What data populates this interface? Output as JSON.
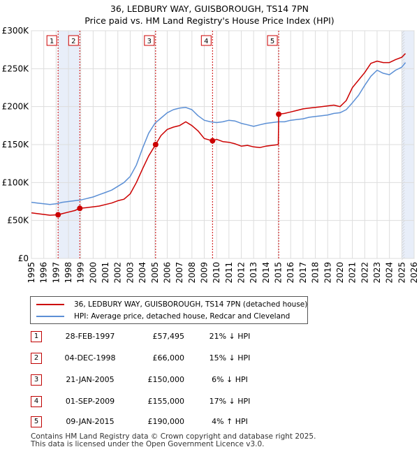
{
  "title_line1": "36, LEDBURY WAY, GUISBOROUGH, TS14 7PN",
  "title_line2": "Price paid vs. HM Land Registry's House Price Index (HPI)",
  "chart_data": {
    "type": "line",
    "title": "36, LEDBURY WAY, GUISBOROUGH, TS14 7PN — Price paid vs. HM Land Registry's House Price Index (HPI)",
    "xlim": [
      1995,
      2026
    ],
    "ylim": [
      0,
      300000
    ],
    "x_ticks": [
      1995,
      1996,
      1997,
      1998,
      1999,
      2000,
      2001,
      2002,
      2003,
      2004,
      2005,
      2006,
      2007,
      2008,
      2009,
      2010,
      2011,
      2012,
      2013,
      2014,
      2015,
      2016,
      2017,
      2018,
      2019,
      2020,
      2021,
      2022,
      2023,
      2024,
      2025,
      2026
    ],
    "y_ticks": [
      0,
      50000,
      100000,
      150000,
      200000,
      250000,
      300000
    ],
    "y_tick_labels": [
      "£0",
      "£50K",
      "£100K",
      "£150K",
      "£200K",
      "£250K",
      "£300K"
    ],
    "grid": true,
    "shaded_ranges": [
      [
        1997.16,
        1998.92
      ],
      [
        2025.0,
        2026.0
      ]
    ],
    "series": [
      {
        "name": "36, LEDBURY WAY, GUISBOROUGH, TS14 7PN (detached house)",
        "color": "#cc0000",
        "x": [
          1995.0,
          1995.5,
          1996.0,
          1996.5,
          1997.16,
          1997.5,
          1998.0,
          1998.5,
          1998.92,
          1999.5,
          2000.0,
          2000.5,
          2001.0,
          2001.5,
          2002.0,
          2002.5,
          2003.0,
          2003.5,
          2004.0,
          2004.5,
          2005.06,
          2005.5,
          2006.0,
          2006.5,
          2007.0,
          2007.5,
          2008.0,
          2008.5,
          2009.0,
          2009.67,
          2010.0,
          2010.5,
          2011.0,
          2011.5,
          2012.0,
          2012.5,
          2013.0,
          2013.5,
          2014.0,
          2014.5,
          2015.0,
          2015.03,
          2015.5,
          2016.0,
          2016.5,
          2017.0,
          2017.5,
          2018.0,
          2018.5,
          2019.0,
          2019.5,
          2020.0,
          2020.5,
          2021.0,
          2021.5,
          2022.0,
          2022.5,
          2023.0,
          2023.5,
          2024.0,
          2024.5,
          2025.0,
          2025.3
        ],
        "values": [
          60000,
          59000,
          58000,
          57000,
          57495,
          59000,
          61000,
          63000,
          66000,
          67000,
          68000,
          69000,
          71000,
          73000,
          76000,
          78000,
          85000,
          100000,
          118000,
          135000,
          150000,
          162000,
          170000,
          173000,
          175000,
          180000,
          175000,
          168000,
          158000,
          155000,
          157000,
          154000,
          153000,
          151000,
          148000,
          149000,
          147000,
          146000,
          148000,
          149000,
          150000,
          190000,
          191000,
          193000,
          195000,
          197000,
          198000,
          199000,
          200000,
          201000,
          202000,
          200000,
          208000,
          225000,
          235000,
          245000,
          257000,
          260000,
          258000,
          258000,
          262000,
          265000,
          270000
        ]
      },
      {
        "name": "HPI: Average price, detached house, Redcar and Cleveland",
        "color": "#5b8fd5",
        "x": [
          1995.0,
          1995.5,
          1996.0,
          1996.5,
          1997.0,
          1997.5,
          1998.0,
          1998.5,
          1999.0,
          1999.5,
          2000.0,
          2000.5,
          2001.0,
          2001.5,
          2002.0,
          2002.5,
          2003.0,
          2003.5,
          2004.0,
          2004.5,
          2005.0,
          2005.5,
          2006.0,
          2006.5,
          2007.0,
          2007.5,
          2008.0,
          2008.5,
          2009.0,
          2009.5,
          2010.0,
          2010.5,
          2011.0,
          2011.5,
          2012.0,
          2012.5,
          2013.0,
          2013.5,
          2014.0,
          2014.5,
          2015.0,
          2015.5,
          2016.0,
          2016.5,
          2017.0,
          2017.5,
          2018.0,
          2018.5,
          2019.0,
          2019.5,
          2020.0,
          2020.5,
          2021.0,
          2021.5,
          2022.0,
          2022.5,
          2023.0,
          2023.5,
          2024.0,
          2024.5,
          2025.0,
          2025.3
        ],
        "values": [
          74000,
          73000,
          72000,
          71000,
          72000,
          74000,
          75000,
          76000,
          77000,
          79000,
          81000,
          84000,
          87000,
          90000,
          95000,
          100000,
          108000,
          123000,
          145000,
          165000,
          178000,
          185000,
          192000,
          196000,
          198000,
          199000,
          196000,
          188000,
          182000,
          180000,
          179000,
          180000,
          182000,
          181000,
          178000,
          176000,
          174000,
          176000,
          178000,
          179000,
          180000,
          180000,
          182000,
          183000,
          184000,
          186000,
          187000,
          188000,
          189000,
          191000,
          192000,
          196000,
          205000,
          215000,
          228000,
          240000,
          248000,
          244000,
          242000,
          248000,
          252000,
          258000
        ]
      }
    ],
    "markers": [
      {
        "label": "1",
        "x": 1997.16,
        "y": 57495
      },
      {
        "label": "2",
        "x": 1998.92,
        "y": 66000
      },
      {
        "label": "3",
        "x": 2005.06,
        "y": 150000
      },
      {
        "label": "4",
        "x": 2009.67,
        "y": 155000
      },
      {
        "label": "5",
        "x": 2015.03,
        "y": 190000
      }
    ]
  },
  "legend": {
    "property_label": "36, LEDBURY WAY, GUISBOROUGH, TS14 7PN (detached house)",
    "hpi_label": "HPI: Average price, detached house, Redcar and Cleveland"
  },
  "transactions": [
    {
      "num": "1",
      "date": "28-FEB-1997",
      "price": "£57,495",
      "hpi": "21% ↓ HPI"
    },
    {
      "num": "2",
      "date": "04-DEC-1998",
      "price": "£66,000",
      "hpi": "15% ↓ HPI"
    },
    {
      "num": "3",
      "date": "21-JAN-2005",
      "price": "£150,000",
      "hpi": "6% ↓ HPI"
    },
    {
      "num": "4",
      "date": "01-SEP-2009",
      "price": "£155,000",
      "hpi": "17% ↓ HPI"
    },
    {
      "num": "5",
      "date": "09-JAN-2015",
      "price": "£190,000",
      "hpi": "4% ↑ HPI"
    }
  ],
  "footer_line1": "Contains HM Land Registry data © Crown copyright and database right 2025.",
  "footer_line2": "This data is licensed under the Open Government Licence v3.0."
}
